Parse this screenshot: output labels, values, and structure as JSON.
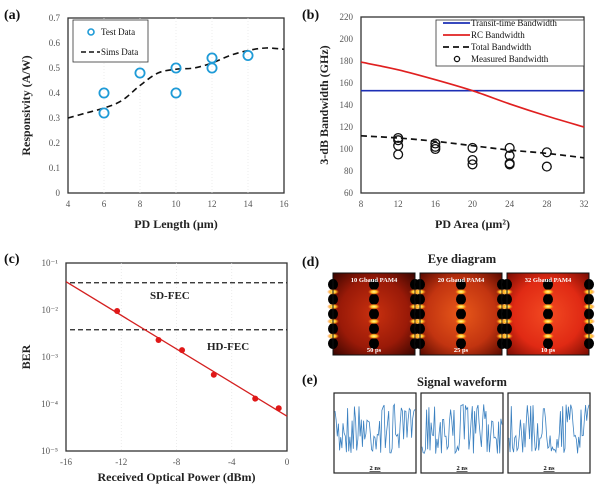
{
  "colors": {
    "test_data": "#1f9bd7",
    "sims": "#111111",
    "transit": "#1c2fb5",
    "rc": "#e02020",
    "total": "#111111",
    "measured": "#111111",
    "ber_fit": "#d42020",
    "ber_points": "#e01818",
    "waveform": "#3a80c0"
  },
  "chart_data": [
    {
      "panel_label": "(a)",
      "type": "scatter",
      "xlabel": "PD Length (µm)",
      "ylabel": "Responsivity (A/W)",
      "xlim": [
        4,
        16
      ],
      "ylim": [
        0,
        0.7
      ],
      "xticks": [
        "4",
        "6",
        "8",
        "10",
        "12",
        "14",
        "16"
      ],
      "yticks": [
        "0",
        "0.1",
        "0.2",
        "0.3",
        "0.4",
        "0.5",
        "0.6",
        "0.7"
      ],
      "legend_position": "top-left",
      "series": [
        {
          "name": "Test Data",
          "type": "scatter",
          "marker": "open-circle",
          "x": [
            6,
            6,
            8,
            10,
            10,
            12,
            12,
            14
          ],
          "y": [
            0.4,
            0.32,
            0.48,
            0.5,
            0.4,
            0.54,
            0.5,
            0.55
          ]
        },
        {
          "name": "Sims Data",
          "type": "line",
          "style": "dashed",
          "x": [
            4,
            5,
            6,
            7,
            8,
            9,
            10,
            11,
            12,
            13,
            14,
            15,
            16
          ],
          "y": [
            0.3,
            0.32,
            0.34,
            0.37,
            0.43,
            0.48,
            0.495,
            0.5,
            0.52,
            0.55,
            0.57,
            0.58,
            0.575
          ]
        }
      ]
    },
    {
      "panel_label": "(b)",
      "type": "line",
      "xlabel": "PD Area (µm²)",
      "ylabel": "3-dB Bandwidth (GHz)",
      "xlim": [
        8,
        32
      ],
      "ylim": [
        60,
        220
      ],
      "xticks": [
        "8",
        "12",
        "16",
        "20",
        "24",
        "28",
        "32"
      ],
      "yticks": [
        "60",
        "80",
        "100",
        "120",
        "140",
        "160",
        "180",
        "200",
        "220"
      ],
      "legend_position": "top-right",
      "series": [
        {
          "name": "Transit-time Bandwidth",
          "type": "line",
          "style": "solid",
          "x": [
            8,
            32
          ],
          "y": [
            153,
            153
          ]
        },
        {
          "name": "RC Bandwidth",
          "type": "line",
          "style": "solid",
          "x": [
            8,
            12,
            16,
            20,
            24,
            28,
            32
          ],
          "y": [
            179,
            172,
            163,
            153,
            141,
            130,
            120
          ]
        },
        {
          "name": "Total Bandwidth",
          "type": "line",
          "style": "dashed",
          "x": [
            8,
            12,
            16,
            20,
            24,
            28,
            32
          ],
          "y": [
            112,
            110,
            107,
            103,
            99,
            96,
            92
          ]
        },
        {
          "name": "Measured Bandwidth",
          "type": "scatter",
          "marker": "open-circle",
          "x": [
            12,
            12,
            12,
            12,
            16,
            16,
            16,
            20,
            20,
            20,
            24,
            24,
            24,
            24,
            28,
            28
          ],
          "y": [
            110,
            108,
            103,
            95,
            105,
            102,
            100,
            101,
            90,
            86,
            101,
            94,
            87,
            86,
            97,
            84
          ]
        }
      ]
    },
    {
      "panel_label": "(c)",
      "type": "scatter",
      "xlabel": "Received Optical Power (dBm)",
      "ylabel": "BER",
      "xlim": [
        -16,
        0
      ],
      "ylim": [
        1e-05,
        0.1
      ],
      "yscale": "log",
      "xticks": [
        "-16",
        "-12",
        "-8",
        "-4",
        "0"
      ],
      "yticks": [
        "10⁻⁵",
        "10⁻⁴",
        "10⁻³",
        "10⁻²",
        "10⁻¹"
      ],
      "series": [
        {
          "type": "scatter",
          "marker": "filled-circle",
          "x": [
            -12.3,
            -9.3,
            -7.6,
            -5.3,
            -2.3,
            -0.6
          ],
          "y": [
            0.0095,
            0.0023,
            0.0014,
            0.00042,
            0.00013,
            8.1e-05
          ]
        },
        {
          "type": "line",
          "style": "solid",
          "x": [
            -16,
            0
          ],
          "y": [
            0.04,
            5.5e-05
          ]
        }
      ],
      "annotations": [
        {
          "text": "SD-FEC",
          "y": 0.038
        },
        {
          "text": "HD-FEC",
          "y": 0.0038
        }
      ]
    }
  ],
  "eye_diagram": {
    "panel_label": "(d)",
    "title": "Eye diagram",
    "items": [
      {
        "rate": "10 Gbaud PAM4",
        "scale": "50 ps"
      },
      {
        "rate": "20 Gbaud PAM4",
        "scale": "25 ps"
      },
      {
        "rate": "32 Gbaud PAM4",
        "scale": "10 ps"
      }
    ]
  },
  "signal_waveform": {
    "panel_label": "(e)",
    "title": "Signal waveform",
    "scale_labels": [
      "2 ns",
      "2 ns",
      "2 ns"
    ]
  }
}
